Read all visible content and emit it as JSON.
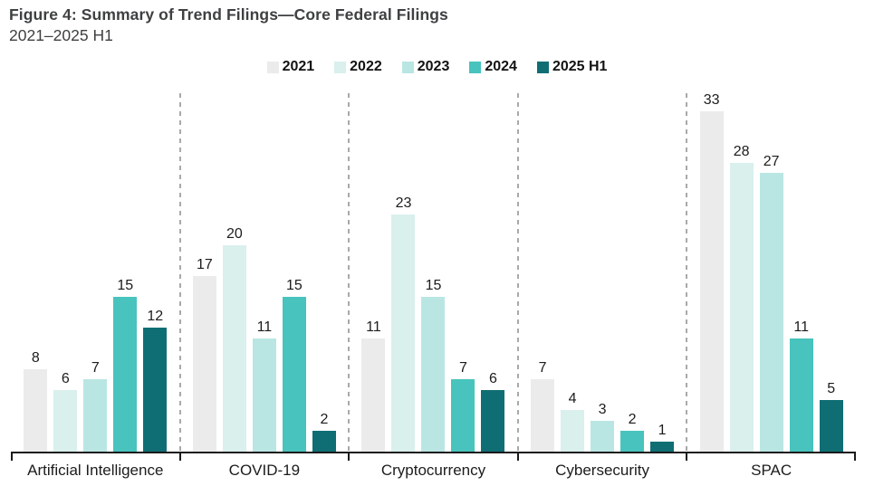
{
  "figure": {
    "title": "Figure 4: Summary of Trend Filings—Core Federal Filings",
    "subtitle": "2021–2025 H1"
  },
  "chart_data": {
    "type": "bar",
    "title": "Figure 4: Summary of Trend Filings—Core Federal Filings",
    "subtitle": "2021–2025 H1",
    "categories": [
      "Artificial Intelligence",
      "COVID-19",
      "Cryptocurrency",
      "Cybersecurity",
      "SPAC"
    ],
    "series": [
      {
        "name": "2021",
        "color": "#ebebeb",
        "values": [
          8,
          17,
          11,
          7,
          33
        ]
      },
      {
        "name": "2022",
        "color": "#d9f0ed",
        "values": [
          6,
          20,
          23,
          4,
          28
        ]
      },
      {
        "name": "2023",
        "color": "#b9e6e3",
        "values": [
          7,
          11,
          15,
          3,
          27
        ]
      },
      {
        "name": "2024",
        "color": "#48c3bd",
        "values": [
          15,
          15,
          7,
          2,
          11
        ]
      },
      {
        "name": "2025 H1",
        "color": "#0f6e74",
        "values": [
          12,
          2,
          6,
          1,
          5
        ]
      }
    ],
    "value_labels": true,
    "legend_position": "top",
    "grid": false,
    "y_axis_shown": false,
    "ylim": [
      0,
      33
    ],
    "separator_color": "#a9a9a9",
    "axis_color": "#1a1a1a",
    "text_color": "#1c1c1c",
    "title_color": "#3e4041"
  }
}
